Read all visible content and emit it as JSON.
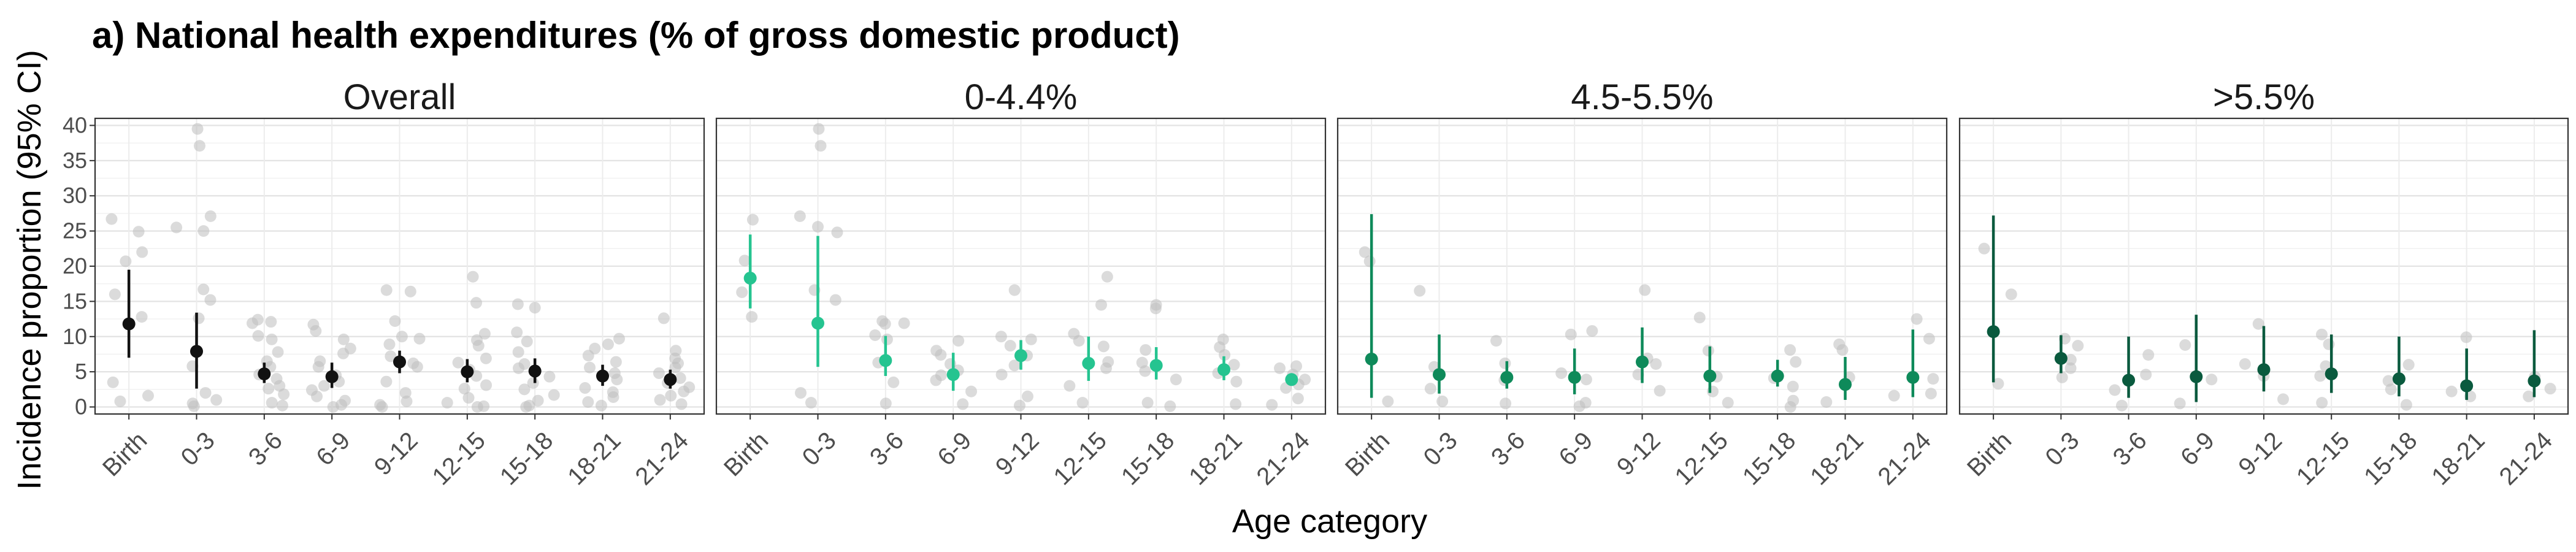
{
  "figure": {
    "title": "a) National health expenditures (% of gross domestic product)",
    "ylabel": "Incidence proportion (95% CI)",
    "xlabel": "Age category"
  },
  "chart_data": {
    "type": "scatter",
    "subtype": "faceted point-range with jittered raw points",
    "title": "a) National health expenditures (% of gross domestic product)",
    "xlabel": "Age category",
    "ylabel": "Incidence proportion (95% CI)",
    "ylim": [
      -1,
      41
    ],
    "yticks": [
      0,
      5,
      10,
      15,
      20,
      25,
      30,
      35,
      40
    ],
    "grid": true,
    "legend": "none",
    "categories": [
      "Birth",
      "0-3",
      "3-6",
      "6-9",
      "9-12",
      "12-15",
      "15-18",
      "18-21",
      "21-24"
    ],
    "raw_point_color": "#bdbdbd",
    "panels": [
      {
        "name": "Overall",
        "color": "#111111",
        "estimates": [
          11.8,
          7.9,
          4.7,
          4.3,
          6.4,
          5.0,
          5.1,
          4.4,
          3.9
        ],
        "lower": [
          7.0,
          2.6,
          3.4,
          2.7,
          4.8,
          3.5,
          3.4,
          3.0,
          2.6
        ],
        "upper": [
          19.5,
          13.4,
          6.3,
          6.3,
          8.0,
          6.8,
          6.9,
          6.0,
          5.3
        ],
        "raw": [
          [
            24.9,
            26.7,
            20.7,
            22.0,
            16.0,
            12.8,
            3.5,
            1.6,
            0.8
          ],
          [
            39.5,
            37.1,
            27.1,
            25.5,
            25.0,
            16.7,
            15.2,
            12.6,
            5.8,
            2.0,
            1.0,
            0.5,
            0.1
          ],
          [
            12.4,
            12.1,
            11.9,
            10.1,
            9.6,
            7.8,
            6.5,
            5.7,
            4.6,
            4.0,
            3.0,
            2.6,
            1.8,
            0.6,
            0.2
          ],
          [
            11.7,
            10.8,
            9.6,
            8.3,
            7.6,
            6.5,
            5.7,
            4.5,
            3.6,
            3.0,
            2.4,
            1.5,
            0.9,
            0.3,
            0.0
          ],
          [
            16.6,
            16.4,
            12.2,
            10.0,
            9.7,
            8.9,
            7.2,
            6.2,
            5.7,
            3.6,
            2.0,
            0.8,
            0.3,
            0.0
          ],
          [
            18.5,
            14.8,
            10.4,
            9.5,
            8.7,
            6.9,
            6.3,
            5.3,
            4.4,
            3.1,
            2.6,
            1.3,
            0.6,
            0.1,
            0.0
          ],
          [
            14.6,
            14.1,
            10.6,
            9.3,
            7.8,
            6.1,
            5.5,
            4.3,
            3.4,
            2.5,
            1.7,
            0.9,
            0.2,
            0.0
          ],
          [
            9.7,
            8.9,
            8.3,
            7.3,
            6.4,
            5.6,
            4.8,
            3.9,
            2.7,
            2.1,
            1.4,
            0.7,
            0.2
          ],
          [
            12.6,
            8.0,
            6.9,
            6.2,
            5.6,
            4.8,
            4.1,
            3.4,
            2.8,
            2.2,
            1.6,
            1.0,
            0.4
          ]
        ]
      },
      {
        "name": "0-4.4%",
        "color": "#25c490",
        "estimates": [
          18.3,
          11.9,
          6.6,
          4.6,
          7.3,
          6.2,
          5.9,
          5.3,
          3.9
        ],
        "lower": [
          14.0,
          5.7,
          4.4,
          2.3,
          5.3,
          3.7,
          3.9,
          3.8,
          3.0
        ],
        "upper": [
          24.5,
          24.3,
          10.1,
          7.7,
          9.5,
          10.0,
          8.5,
          7.2,
          4.7
        ],
        "raw": [
          [
            26.6,
            20.8,
            16.3,
            12.8
          ],
          [
            39.5,
            37.1,
            27.1,
            25.6,
            24.8,
            16.6,
            15.2,
            2.0,
            0.6
          ],
          [
            12.2,
            11.9,
            11.8,
            10.2,
            9.6,
            6.3,
            3.5,
            0.5
          ],
          [
            9.4,
            8.0,
            7.4,
            6.1,
            5.2,
            4.5,
            3.8,
            2.2,
            0.4
          ],
          [
            16.6,
            10.0,
            9.6,
            8.7,
            7.3,
            5.9,
            4.6,
            1.5,
            0.2
          ],
          [
            18.5,
            14.5,
            10.4,
            9.4,
            8.6,
            6.4,
            5.5,
            3.0,
            0.6
          ],
          [
            14.5,
            14.0,
            8.1,
            6.3,
            5.1,
            3.9,
            0.6,
            0.1
          ],
          [
            9.6,
            8.5,
            7.4,
            6.0,
            4.8,
            3.6,
            0.4
          ],
          [
            5.8,
            5.5,
            4.6,
            3.9,
            3.2,
            2.7,
            1.2,
            0.3
          ]
        ]
      },
      {
        "name": "4.5-5.5%",
        "color": "#0e8a5a",
        "estimates": [
          6.8,
          4.6,
          4.2,
          4.2,
          6.4,
          4.4,
          4.4,
          3.2,
          4.2
        ],
        "lower": [
          1.3,
          1.9,
          2.6,
          1.8,
          3.4,
          2.0,
          2.9,
          1.0,
          1.4
        ],
        "upper": [
          27.4,
          10.3,
          6.5,
          8.3,
          11.3,
          8.6,
          6.7,
          7.1,
          11.0
        ],
        "raw": [
          [
            20.7,
            22.0,
            0.8
          ],
          [
            16.5,
            5.7,
            2.6,
            0.8
          ],
          [
            9.4,
            6.2,
            3.8,
            0.5
          ],
          [
            10.8,
            10.3,
            4.8,
            3.9,
            0.6,
            0.1
          ],
          [
            16.6,
            6.9,
            6.1,
            4.6,
            2.3
          ],
          [
            12.7,
            8.0,
            4.3,
            2.2,
            0.6
          ],
          [
            8.1,
            6.4,
            4.1,
            2.9,
            0.9,
            0.0
          ],
          [
            8.9,
            8.1,
            4.2,
            0.7
          ],
          [
            12.5,
            9.7,
            4.0,
            1.9,
            1.6
          ]
        ]
      },
      {
        "name": ">5.5%",
        "color": "#0a5a3e",
        "estimates": [
          10.7,
          6.9,
          3.8,
          4.3,
          5.3,
          4.7,
          4.0,
          3.0,
          3.7
        ],
        "lower": [
          3.5,
          4.8,
          1.3,
          0.7,
          2.2,
          2.0,
          1.5,
          1.0,
          1.4
        ],
        "upper": [
          27.2,
          10.2,
          10.0,
          13.1,
          11.5,
          10.3,
          10.0,
          8.3,
          10.9
        ],
        "raw": [
          [
            22.5,
            16.0,
            3.3
          ],
          [
            9.7,
            8.7,
            6.7,
            5.5,
            4.2
          ],
          [
            7.4,
            4.6,
            2.4,
            0.2
          ],
          [
            8.8,
            3.9,
            0.5
          ],
          [
            11.8,
            6.1,
            4.4,
            1.1
          ],
          [
            10.3,
            8.9,
            5.8,
            4.4,
            0.6
          ],
          [
            6.0,
            3.7,
            2.5,
            0.3
          ],
          [
            9.9,
            2.2,
            1.5
          ],
          [
            4.3,
            2.6,
            1.5
          ]
        ]
      }
    ]
  }
}
